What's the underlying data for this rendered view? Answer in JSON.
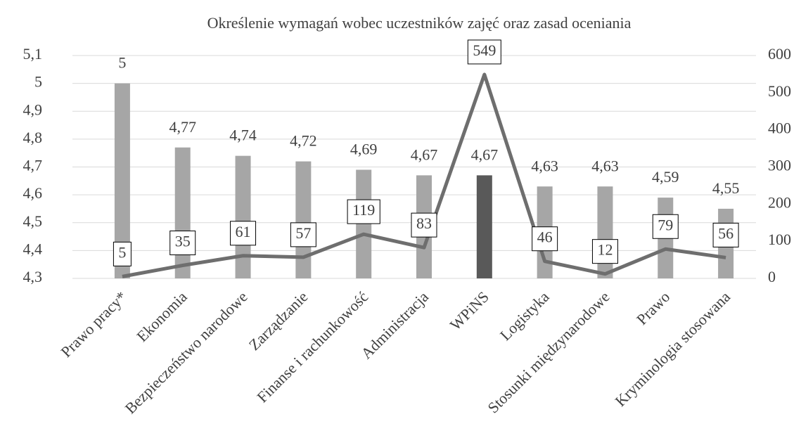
{
  "chart_data": {
    "type": "bar",
    "title": "Określenie wymagań wobec uczestników zajęć oraz zasad oceniania",
    "categories": [
      "Prawo pracy*",
      "Ekonomia",
      "Bezpieczeństwo narodowe",
      "Zarządzanie",
      "Finanse i rachunkowość",
      "Administracja",
      "WPiNS",
      "Logistyka",
      "Stosunki międzynarodowe",
      "Prawo",
      "Kryminologia stosowana"
    ],
    "series": [
      {
        "type": "bar",
        "colors": [
          "#a6a6a6",
          "#a6a6a6",
          "#a6a6a6",
          "#a6a6a6",
          "#a6a6a6",
          "#a6a6a6",
          "#595959",
          "#a6a6a6",
          "#a6a6a6",
          "#a6a6a6",
          "#a6a6a6"
        ],
        "values": [
          5,
          4.77,
          4.74,
          4.72,
          4.69,
          4.67,
          4.67,
          4.63,
          4.63,
          4.59,
          4.55
        ],
        "value_labels": [
          "5",
          "4,77",
          "4,74",
          "4,72",
          "4,69",
          "4,67",
          "4,67",
          "4,63",
          "4,63",
          "4,59",
          "4,55"
        ]
      },
      {
        "type": "line",
        "axis": "y2",
        "color": "#6e6e6e",
        "values": [
          5,
          35,
          61,
          57,
          119,
          83,
          549,
          46,
          12,
          79,
          56
        ]
      }
    ],
    "ylim": [
      4.3,
      5.1
    ],
    "yticks": [
      {
        "value": 4.3,
        "label": "4,3"
      },
      {
        "value": 4.4,
        "label": "4,4"
      },
      {
        "value": 4.5,
        "label": "4,5"
      },
      {
        "value": 4.6,
        "label": "4,6"
      },
      {
        "value": 4.7,
        "label": "4,7"
      },
      {
        "value": 4.8,
        "label": "4,8"
      },
      {
        "value": 4.9,
        "label": "4,9"
      },
      5,
      {
        "value": 5.1,
        "label": "5,1"
      }
    ],
    "y2lim": [
      0,
      600
    ],
    "y2ticks": [
      0,
      100,
      200,
      300,
      400,
      500,
      600
    ],
    "grid": true
  }
}
